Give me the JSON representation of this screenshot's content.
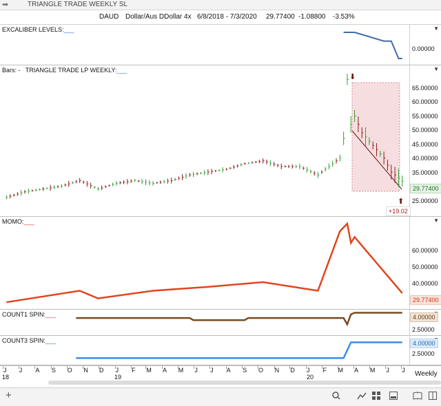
{
  "window": {
    "title": "TRIANGLE TRADE WEEKLY SL",
    "nav_icon": "arrow-right-icon"
  },
  "header": {
    "symbol": "DAUD",
    "description": "Dollar/Aus DDollar 4x",
    "date_range": "6/8/2018 - 7/3/2020",
    "last": "29.77400",
    "change": "-1.08800",
    "change_pct": "-3.53%"
  },
  "panels": {
    "excaliber": {
      "label": "EXCALIBER LEVELS:",
      "ticks": [
        "0.00000"
      ]
    },
    "bars": {
      "label_prefix": "Bars:",
      "label_sep": "-",
      "label": "TRIANGLE TRADE LP WEEKLY:",
      "ticks": [
        "65.00000",
        "60.00000",
        "55.00000",
        "50.00000",
        "45.00000",
        "40.00000",
        "35.00000",
        "30.00000",
        "25.00000"
      ],
      "last_value": "29.77400",
      "annotation": "+19.02"
    },
    "momo": {
      "label": "MOMO:",
      "ticks": [
        "60.00000",
        "50.00000",
        "40.00000"
      ],
      "last_value": "29.77400"
    },
    "count1": {
      "label": "COUNT1 SPIN:",
      "ticks": [
        "2.50000"
      ],
      "last_value": "4.00000"
    },
    "count3": {
      "label": "COUNT3 SPIN:",
      "ticks": [
        "2.50000"
      ],
      "last_value": "4.00000"
    }
  },
  "x_axis": {
    "months": [
      "J",
      "J",
      "A",
      "S",
      "O",
      "N",
      "D",
      "J",
      "F",
      "M",
      "A",
      "M",
      "J",
      "J",
      "A",
      "S",
      "O",
      "N",
      "D",
      "J",
      "F",
      "M",
      "A",
      "M",
      "J",
      "J"
    ],
    "years": [
      "18",
      "19",
      "20"
    ],
    "period": "Weekly"
  },
  "toolbar": {
    "icons": [
      "plus-icon",
      "search-icon",
      "line-chart-icon",
      "grid-icon",
      "window-icon",
      "book-icon",
      "columns-icon"
    ]
  },
  "colors": {
    "up_bar": "#2e9e2e",
    "down_bar": "#8b1a1a",
    "momo": "#e0441e",
    "count1": "#7a4a1e",
    "count3": "#3a8ee6",
    "excaliber": "#3e6aa8",
    "box": "#f4d6d8"
  },
  "chart_data": [
    {
      "type": "line",
      "title": "EXCALIBER LEVELS",
      "x": [
        "2020-03-13",
        "2020-03-20",
        "2020-04-03",
        "2020-05-29",
        "2020-06-12",
        "2020-06-26",
        "2020-07-03"
      ],
      "series": [
        {
          "values": [
            1.0,
            1.0,
            1.0,
            0.5,
            0.5,
            -0.5,
            -0.5
          ]
        }
      ]
    },
    {
      "type": "bar",
      "title": "TRIANGLE TRADE LP WEEKLY",
      "ylim": [
        22,
        70
      ],
      "categories": [
        "2018-06-08",
        "2018-07-13",
        "2018-08-17",
        "2018-09-21",
        "2018-10-26",
        "2018-11-30",
        "2019-01-04",
        "2019-02-08",
        "2019-03-15",
        "2019-04-19",
        "2019-05-24",
        "2019-06-28",
        "2019-08-02",
        "2019-09-06",
        "2019-10-11",
        "2019-11-15",
        "2019-12-20",
        "2020-01-24",
        "2020-02-21",
        "2020-03-06",
        "2020-03-13",
        "2020-03-20",
        "2020-03-27",
        "2020-04-03",
        "2020-04-17",
        "2020-05-01",
        "2020-05-15",
        "2020-05-29",
        "2020-06-12",
        "2020-06-26",
        "2020-07-03"
      ],
      "values": [
        24,
        26,
        27,
        28,
        30,
        27,
        29,
        30,
        29,
        30,
        32,
        33,
        34,
        36,
        37,
        35,
        35,
        32,
        36,
        38,
        45,
        66,
        50,
        53,
        47,
        44,
        41,
        38,
        33,
        31,
        29.774
      ]
    },
    {
      "type": "line",
      "title": "MOMO",
      "ylim": [
        24,
        66
      ],
      "x": [
        "2018-06-08",
        "2018-10-26",
        "2018-11-30",
        "2019-03-15",
        "2019-06-28",
        "2019-10-11",
        "2020-01-24",
        "2020-03-06",
        "2020-03-20",
        "2020-03-27",
        "2020-04-03",
        "2020-07-03"
      ],
      "series": [
        {
          "values": [
            25,
            31,
            27,
            31,
            33,
            35.5,
            31,
            62,
            66,
            56,
            59,
            29.774
          ]
        }
      ]
    },
    {
      "type": "line",
      "title": "COUNT1 SPIN",
      "x": [
        "2018-10-19",
        "2019-05-24",
        "2019-05-31",
        "2019-09-06",
        "2019-09-13",
        "2020-03-13",
        "2020-03-20",
        "2020-03-27",
        "2020-04-03",
        "2020-07-03"
      ],
      "series": [
        {
          "values": [
            3,
            3,
            2.6,
            2.6,
            3,
            3,
            1.8,
            3.7,
            4,
            4
          ]
        }
      ]
    },
    {
      "type": "line",
      "title": "COUNT3 SPIN",
      "x": [
        "2018-10-19",
        "2020-03-13",
        "2020-03-27",
        "2020-07-03"
      ],
      "series": [
        {
          "values": [
            1,
            1,
            4,
            4
          ]
        }
      ]
    }
  ]
}
